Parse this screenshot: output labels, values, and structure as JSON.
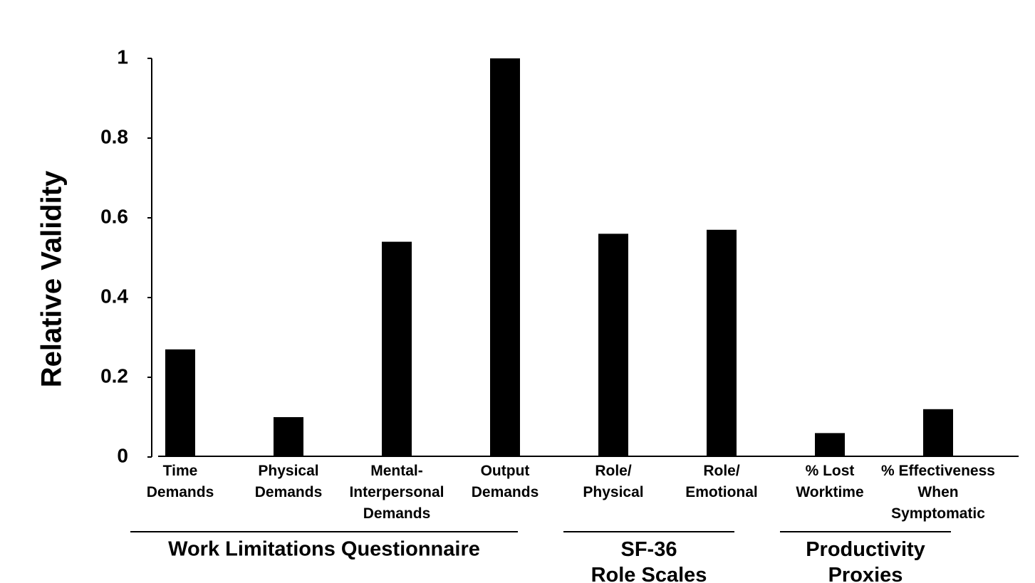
{
  "chart_data": {
    "type": "bar",
    "y_label": "Relative Validity",
    "ylim": [
      0,
      1
    ],
    "yticks": [
      0,
      0.2,
      0.4,
      0.6,
      0.8,
      1
    ],
    "color": "#000000",
    "groups": [
      {
        "label": "Work Limitations Questionnaire",
        "categories": [
          "Time\nDemands",
          "Physical\nDemands",
          "Mental-\nInterpersonal\nDemands",
          "Output\nDemands"
        ],
        "values": [
          0.27,
          0.1,
          0.54,
          1.0
        ]
      },
      {
        "label": "SF-36\nRole Scales",
        "categories": [
          "Role/\nPhysical",
          "Role/\nEmotional"
        ],
        "values": [
          0.56,
          0.57
        ]
      },
      {
        "label": "Productivity\nProxies",
        "categories": [
          "% Lost\nWorktime",
          "% Effectiveness\nWhen\nSymptomatic"
        ],
        "values": [
          0.06,
          0.12
        ]
      }
    ]
  }
}
